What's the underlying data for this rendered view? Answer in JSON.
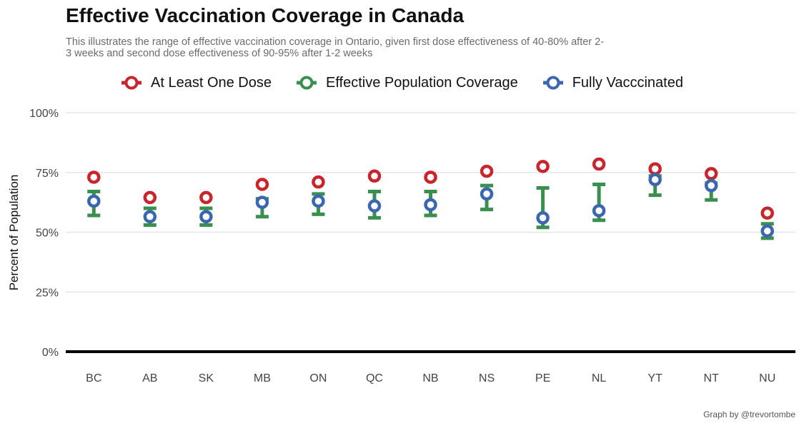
{
  "title": "Effective Vaccination Coverage in Canada",
  "subtitle": "This illustrates the range of effective vaccination coverage in Ontario, given first dose effectiveness of 40-80% after 2-3 weeks and second dose effectiveness of 90-95% after 1-2 weeks",
  "caption": "Graph by @trevortombe",
  "colors": {
    "first_dose": "#c8252c",
    "effective": "#3a8f4e",
    "fully": "#3a67b0",
    "grid": "#e5e5e5",
    "baseline": "#000000"
  },
  "legend": [
    {
      "label": "At Least One Dose",
      "color": "#c8252c"
    },
    {
      "label": "Effective Population Coverage",
      "color": "#3a8f4e"
    },
    {
      "label": "Fully Vacccinated",
      "color": "#3a67b0"
    }
  ],
  "chart_data": {
    "type": "scatter",
    "ylabel": "Percent of Population",
    "ylim": [
      0,
      100
    ],
    "yticks": [
      0,
      25,
      50,
      75,
      100
    ],
    "ytick_labels": [
      "0%",
      "25%",
      "50%",
      "75%",
      "100%"
    ],
    "grid": true,
    "legend_position": "top",
    "categories": [
      "BC",
      "AB",
      "SK",
      "MB",
      "ON",
      "QC",
      "NB",
      "NS",
      "PE",
      "NL",
      "YT",
      "NT",
      "NU"
    ],
    "series": [
      {
        "name": "At Least One Dose",
        "type": "point",
        "values": [
          73,
          64.5,
          64.5,
          70,
          71,
          73.5,
          73,
          75.5,
          77.5,
          78.5,
          76.5,
          74.5,
          58
        ]
      },
      {
        "name": "Effective Population Coverage",
        "type": "errorbar",
        "low": [
          57,
          53,
          53,
          56.5,
          57.5,
          56,
          57,
          59.5,
          52,
          55,
          65.5,
          63.5,
          47.5
        ],
        "high": [
          67,
          60,
          60,
          64,
          66,
          67,
          67,
          69.5,
          68.5,
          70,
          73.5,
          70.5,
          53.5
        ]
      },
      {
        "name": "Fully Vacccinated",
        "type": "point",
        "values": [
          63,
          56.5,
          56.5,
          62.5,
          63,
          61,
          61.5,
          66,
          56,
          59,
          72,
          69.5,
          50.5
        ]
      }
    ]
  }
}
